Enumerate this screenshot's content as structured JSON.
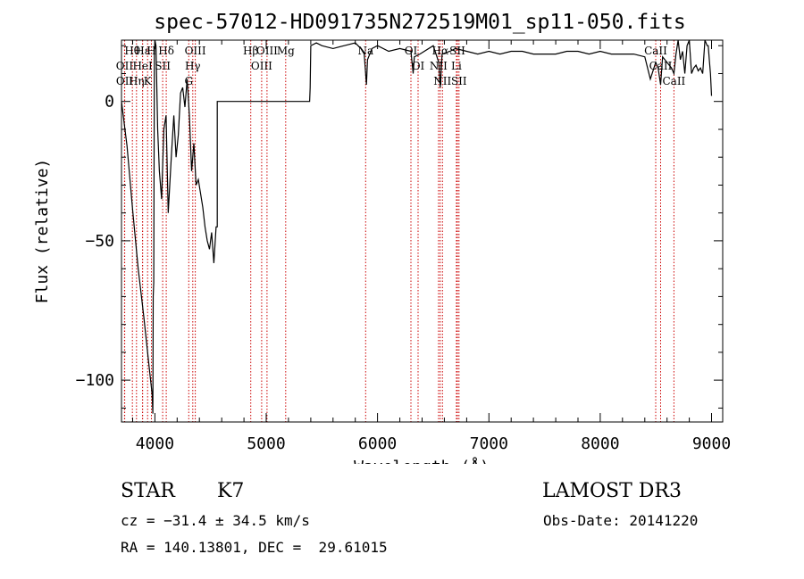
{
  "chart_data": {
    "type": "line",
    "title": "spec-57012-HD091735N272519M01_sp11-050.fits",
    "xlabel": "Wavelength (Å)",
    "ylabel": "Flux (relative)",
    "xlim": [
      3700,
      9100
    ],
    "ylim": [
      -115,
      22
    ],
    "xticks": [
      4000,
      5000,
      6000,
      7000,
      8000,
      9000
    ],
    "yticks": [
      0,
      -50,
      -100
    ],
    "xtick_labels": [
      "4000",
      "5000",
      "6000",
      "7000",
      "8000",
      "9000"
    ],
    "ytick_labels": [
      "0",
      "−50",
      "−100"
    ],
    "series": [
      {
        "name": "spectrum",
        "x": [
          3700,
          3750,
          3800,
          3850,
          3900,
          3950,
          3975,
          3982,
          3985,
          3990,
          3995,
          4000,
          4010,
          4025,
          4040,
          4060,
          4080,
          4100,
          4120,
          4150,
          4170,
          4190,
          4210,
          4230,
          4250,
          4270,
          4290,
          4310,
          4330,
          4350,
          4370,
          4390,
          4410,
          4430,
          4450,
          4470,
          4490,
          4510,
          4530,
          4550,
          4560,
          4560,
          4700,
          4900,
          5100,
          5300,
          5390,
          5395,
          5400,
          5450,
          5500,
          5600,
          5700,
          5800,
          5850,
          5880,
          5893,
          5900,
          5910,
          5950,
          6000,
          6100,
          6200,
          6300,
          6320,
          6330,
          6380,
          6500,
          6550,
          6563,
          6580,
          6650,
          6700,
          6800,
          6900,
          7000,
          7100,
          7200,
          7300,
          7400,
          7500,
          7600,
          7700,
          7800,
          7900,
          8000,
          8100,
          8200,
          8300,
          8400,
          8450,
          8498,
          8520,
          8542,
          8560,
          8600,
          8640,
          8662,
          8680,
          8700,
          8720,
          8740,
          8760,
          8780,
          8800,
          8820,
          8840,
          8860,
          8880,
          8900,
          8920,
          8940,
          8960,
          8970,
          8980,
          8990,
          9000
        ],
        "y": [
          0,
          -16,
          -39,
          -60,
          -77,
          -96,
          -105,
          -112,
          -70,
          -65,
          17,
          23,
          20,
          -10,
          -25,
          -35,
          -10,
          -5,
          -40,
          -18,
          -5,
          -20,
          -12,
          3,
          5,
          -2,
          8,
          -5,
          -25,
          -15,
          -30,
          -28,
          -33,
          -38,
          -45,
          -50,
          -53,
          -47,
          -58,
          -45,
          -45,
          0,
          0,
          0,
          0,
          0,
          0,
          5,
          20,
          21,
          20,
          19,
          20,
          21,
          19,
          17,
          10,
          6,
          15,
          19,
          20,
          18,
          19,
          18,
          10,
          16,
          17,
          20,
          14,
          5,
          17,
          18,
          19,
          18,
          17,
          18,
          17,
          18,
          18,
          17,
          17,
          17,
          18,
          18,
          17,
          18,
          17,
          17,
          17,
          16,
          8,
          14,
          12,
          6,
          16,
          14,
          12,
          10,
          17,
          22,
          15,
          18,
          10,
          20,
          24,
          10,
          12,
          13,
          11,
          12,
          10,
          22,
          20,
          20,
          15,
          10,
          2
        ]
      }
    ],
    "line_marks": [
      {
        "label": "Hθ",
        "wavelength": 3798
      },
      {
        "label": "OII",
        "wavelength": 3727
      },
      {
        "label": "OII",
        "wavelength": 3729
      },
      {
        "label": "Hη",
        "wavelength": 3835
      },
      {
        "label": "HeI",
        "wavelength": 3889
      },
      {
        "label": "Hε",
        "wavelength": 3889
      },
      {
        "label": "K",
        "wavelength": 3934
      },
      {
        "label": "H",
        "wavelength": 3969
      },
      {
        "label": "Hδ",
        "wavelength": 4102
      },
      {
        "label": "SII",
        "wavelength": 4070
      },
      {
        "label": "OIII",
        "wavelength": 4363
      },
      {
        "label": "Hγ",
        "wavelength": 4340
      },
      {
        "label": "G",
        "wavelength": 4304
      },
      {
        "label": "Hβ",
        "wavelength": 4861
      },
      {
        "label": "OIII",
        "wavelength": 4959
      },
      {
        "label": "OIII",
        "wavelength": 5007
      },
      {
        "label": "Mg",
        "wavelength": 5175
      },
      {
        "label": "Na",
        "wavelength": 5893
      },
      {
        "label": "OI",
        "wavelength": 6300
      },
      {
        "label": "OI",
        "wavelength": 6364
      },
      {
        "label": "Hα",
        "wavelength": 6563
      },
      {
        "label": "NII",
        "wavelength": 6548
      },
      {
        "label": "NII",
        "wavelength": 6583
      },
      {
        "label": "SII",
        "wavelength": 6717
      },
      {
        "label": "Li",
        "wavelength": 6708
      },
      {
        "label": "SII",
        "wavelength": 6731
      },
      {
        "label": "CaII",
        "wavelength": 8498
      },
      {
        "label": "CaII",
        "wavelength": 8542
      },
      {
        "label": "CaII",
        "wavelength": 8662
      }
    ]
  },
  "info": {
    "object_class": "STAR",
    "subclass": "K7",
    "survey": "LAMOST DR3",
    "redshift": "cz = −31.4 ± 34.5 km/s",
    "obs_date": "Obs-Date: 20141220",
    "coords": "RA = 140.13801, DEC =  29.61015"
  },
  "colors": {
    "line_marker": "#cc0000",
    "spectrum": "#000000",
    "axes": "#000000"
  }
}
